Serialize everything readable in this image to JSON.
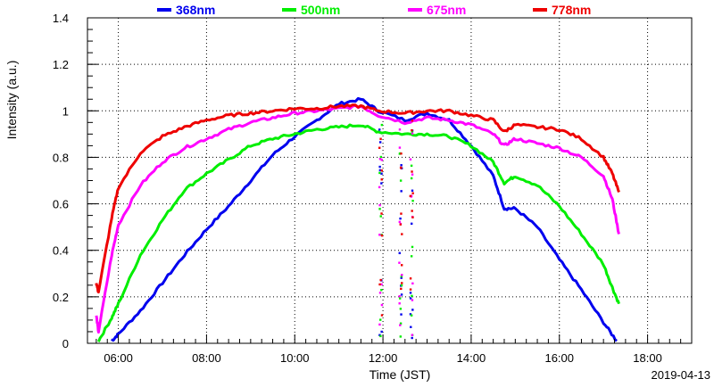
{
  "chart_data": {
    "type": "line",
    "title": "",
    "xlabel": "Time (JST)",
    "ylabel": "Intensity (a.u.)",
    "date_label": "2019-04-13",
    "x_unit": "hours",
    "xlim": [
      5.3,
      19.0
    ],
    "ylim": [
      0,
      1.4
    ],
    "x_ticks": [
      {
        "value": 6,
        "label": "06:00"
      },
      {
        "value": 8,
        "label": "08:00"
      },
      {
        "value": 10,
        "label": "10:00"
      },
      {
        "value": 12,
        "label": "12:00"
      },
      {
        "value": 14,
        "label": "14:00"
      },
      {
        "value": 16,
        "label": "16:00"
      },
      {
        "value": 18,
        "label": "18:00"
      }
    ],
    "y_ticks": [
      {
        "value": 0,
        "label": "0"
      },
      {
        "value": 0.2,
        "label": "0.2"
      },
      {
        "value": 0.4,
        "label": "0.4"
      },
      {
        "value": 0.6,
        "label": "0.6"
      },
      {
        "value": 0.8,
        "label": "0.8"
      },
      {
        "value": 1.0,
        "label": "1"
      },
      {
        "value": 1.2,
        "label": "1.2"
      },
      {
        "value": 1.4,
        "label": "1.4"
      }
    ],
    "grid": true,
    "legend_position": "top",
    "series": [
      {
        "name": "368nm",
        "color": "#0000ee",
        "points": [
          [
            5.85,
            0.01
          ],
          [
            6.0,
            0.04
          ],
          [
            6.5,
            0.14
          ],
          [
            7.0,
            0.26
          ],
          [
            7.5,
            0.38
          ],
          [
            8.0,
            0.49
          ],
          [
            8.5,
            0.59
          ],
          [
            9.0,
            0.7
          ],
          [
            9.5,
            0.81
          ],
          [
            10.0,
            0.89
          ],
          [
            10.5,
            0.96
          ],
          [
            11.0,
            1.03
          ],
          [
            11.5,
            1.05
          ],
          [
            11.9,
            1.0
          ],
          [
            12.5,
            0.96
          ],
          [
            13.0,
            0.99
          ],
          [
            13.5,
            0.96
          ],
          [
            14.0,
            0.85
          ],
          [
            14.5,
            0.72
          ],
          [
            14.75,
            0.58
          ],
          [
            15.0,
            0.58
          ],
          [
            15.5,
            0.5
          ],
          [
            16.0,
            0.36
          ],
          [
            16.5,
            0.23
          ],
          [
            17.0,
            0.09
          ],
          [
            17.3,
            0.01
          ]
        ]
      },
      {
        "name": "500nm",
        "color": "#00ee00",
        "points": [
          [
            5.55,
            0.01
          ],
          [
            5.85,
            0.11
          ],
          [
            6.0,
            0.17
          ],
          [
            6.5,
            0.38
          ],
          [
            7.0,
            0.53
          ],
          [
            7.5,
            0.66
          ],
          [
            8.0,
            0.73
          ],
          [
            8.5,
            0.79
          ],
          [
            9.0,
            0.85
          ],
          [
            9.5,
            0.88
          ],
          [
            10.0,
            0.9
          ],
          [
            10.5,
            0.92
          ],
          [
            11.0,
            0.93
          ],
          [
            11.5,
            0.94
          ],
          [
            11.9,
            0.91
          ],
          [
            12.5,
            0.9
          ],
          [
            13.0,
            0.9
          ],
          [
            13.5,
            0.89
          ],
          [
            14.0,
            0.85
          ],
          [
            14.5,
            0.78
          ],
          [
            14.75,
            0.69
          ],
          [
            15.0,
            0.72
          ],
          [
            15.5,
            0.68
          ],
          [
            16.0,
            0.59
          ],
          [
            16.5,
            0.47
          ],
          [
            17.0,
            0.34
          ],
          [
            17.2,
            0.24
          ],
          [
            17.35,
            0.17
          ]
        ]
      },
      {
        "name": "675nm",
        "color": "#ff00ff",
        "points": [
          [
            5.5,
            0.12
          ],
          [
            5.55,
            0.05
          ],
          [
            5.85,
            0.38
          ],
          [
            6.0,
            0.51
          ],
          [
            6.5,
            0.68
          ],
          [
            7.0,
            0.78
          ],
          [
            7.5,
            0.84
          ],
          [
            8.0,
            0.88
          ],
          [
            8.5,
            0.92
          ],
          [
            9.0,
            0.95
          ],
          [
            9.5,
            0.97
          ],
          [
            10.0,
            0.99
          ],
          [
            10.5,
            1.0
          ],
          [
            11.0,
            1.01
          ],
          [
            11.5,
            1.02
          ],
          [
            11.9,
            0.98
          ],
          [
            12.5,
            0.95
          ],
          [
            13.0,
            0.97
          ],
          [
            13.5,
            0.96
          ],
          [
            14.0,
            0.94
          ],
          [
            14.5,
            0.9
          ],
          [
            14.75,
            0.85
          ],
          [
            15.0,
            0.88
          ],
          [
            15.5,
            0.86
          ],
          [
            16.0,
            0.84
          ],
          [
            16.5,
            0.8
          ],
          [
            17.0,
            0.72
          ],
          [
            17.2,
            0.62
          ],
          [
            17.35,
            0.47
          ]
        ]
      },
      {
        "name": "778nm",
        "color": "#ee0000",
        "points": [
          [
            5.5,
            0.26
          ],
          [
            5.55,
            0.22
          ],
          [
            5.85,
            0.54
          ],
          [
            6.0,
            0.67
          ],
          [
            6.5,
            0.82
          ],
          [
            7.0,
            0.89
          ],
          [
            7.5,
            0.93
          ],
          [
            8.0,
            0.96
          ],
          [
            8.5,
            0.98
          ],
          [
            9.0,
            0.99
          ],
          [
            9.5,
            1.0
          ],
          [
            10.0,
            1.01
          ],
          [
            10.5,
            1.01
          ],
          [
            11.0,
            1.02
          ],
          [
            11.5,
            1.02
          ],
          [
            11.9,
            1.0
          ],
          [
            12.5,
            0.99
          ],
          [
            13.0,
            1.0
          ],
          [
            13.5,
            1.0
          ],
          [
            14.0,
            0.98
          ],
          [
            14.5,
            0.96
          ],
          [
            14.75,
            0.91
          ],
          [
            15.0,
            0.94
          ],
          [
            15.5,
            0.93
          ],
          [
            16.0,
            0.92
          ],
          [
            16.5,
            0.88
          ],
          [
            17.0,
            0.8
          ],
          [
            17.2,
            0.73
          ],
          [
            17.35,
            0.65
          ]
        ]
      }
    ],
    "scatter_noise": {
      "x_centers": [
        11.95,
        12.4,
        12.65
      ],
      "y_range": [
        0.02,
        0.98
      ],
      "points_per_cluster": 36
    }
  }
}
